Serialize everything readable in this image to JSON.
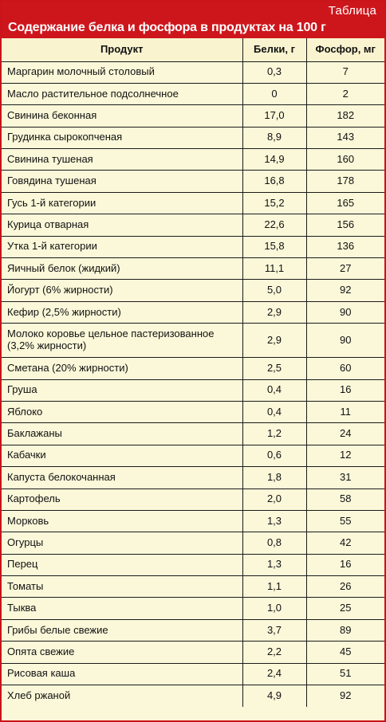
{
  "header": {
    "label": "Таблица",
    "title": "Содержание белка и фосфора в продуктах на 100 г"
  },
  "columns": {
    "product": "Продукт",
    "protein": "Белки, г",
    "phosphorus": "Фосфор, мг"
  },
  "colors": {
    "header_bg": "#cd161c",
    "table_bg": "#fbf8d9",
    "border": "#1a1a1a"
  },
  "rows": [
    {
      "name": "Маргарин молочный столовый",
      "protein": "0,3",
      "phosphorus": "7"
    },
    {
      "name": "Масло растительное подсолнечное",
      "protein": "0",
      "phosphorus": "2"
    },
    {
      "name": "Свинина беконная",
      "protein": "17,0",
      "phosphorus": "182"
    },
    {
      "name": "Грудинка сырокопченая",
      "protein": "8,9",
      "phosphorus": "143"
    },
    {
      "name": "Свинина тушеная",
      "protein": "14,9",
      "phosphorus": "160"
    },
    {
      "name": "Говядина тушеная",
      "protein": "16,8",
      "phosphorus": "178"
    },
    {
      "name": "Гусь 1-й категории",
      "protein": "15,2",
      "phosphorus": "165"
    },
    {
      "name": "Курица отварная",
      "protein": "22,6",
      "phosphorus": "156"
    },
    {
      "name": "Утка 1-й категории",
      "protein": "15,8",
      "phosphorus": "136"
    },
    {
      "name": "Яичный белок (жидкий)",
      "protein": "11,1",
      "phosphorus": "27"
    },
    {
      "name": "Йогурт (6% жирности)",
      "protein": "5,0",
      "phosphorus": "92"
    },
    {
      "name": "Кефир (2,5% жирности)",
      "protein": "2,9",
      "phosphorus": "90"
    },
    {
      "name": "Молоко коровье цельное пастеризованное (3,2% жирности)",
      "protein": "2,9",
      "phosphorus": "90"
    },
    {
      "name": "Сметана (20% жирности)",
      "protein": "2,5",
      "phosphorus": "60"
    },
    {
      "name": "Груша",
      "protein": "0,4",
      "phosphorus": "16"
    },
    {
      "name": "Яблоко",
      "protein": "0,4",
      "phosphorus": "11"
    },
    {
      "name": "Баклажаны",
      "protein": "1,2",
      "phosphorus": "24"
    },
    {
      "name": "Кабачки",
      "protein": "0,6",
      "phosphorus": "12"
    },
    {
      "name": "Капуста белокочанная",
      "protein": "1,8",
      "phosphorus": "31"
    },
    {
      "name": "Картофель",
      "protein": "2,0",
      "phosphorus": "58"
    },
    {
      "name": "Морковь",
      "protein": "1,3",
      "phosphorus": "55"
    },
    {
      "name": "Огурцы",
      "protein": "0,8",
      "phosphorus": "42"
    },
    {
      "name": "Перец",
      "protein": "1,3",
      "phosphorus": "16"
    },
    {
      "name": "Томаты",
      "protein": "1,1",
      "phosphorus": "26"
    },
    {
      "name": "Тыква",
      "protein": "1,0",
      "phosphorus": "25"
    },
    {
      "name": "Грибы белые свежие",
      "protein": "3,7",
      "phosphorus": "89"
    },
    {
      "name": "Опята свежие",
      "protein": "2,2",
      "phosphorus": "45"
    },
    {
      "name": "Рисовая каша",
      "protein": "2,4",
      "phosphorus": "51"
    },
    {
      "name": "Хлеб ржаной",
      "protein": "4,9",
      "phosphorus": "92"
    }
  ]
}
